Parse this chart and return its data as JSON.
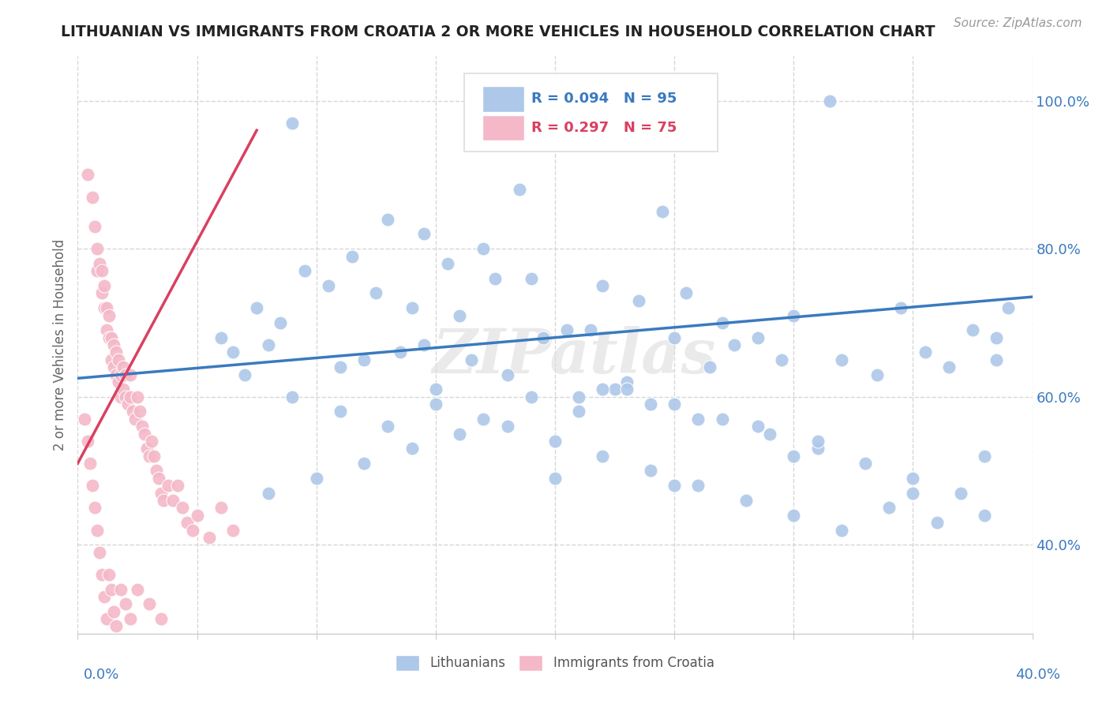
{
  "title": "LITHUANIAN VS IMMIGRANTS FROM CROATIA 2 OR MORE VEHICLES IN HOUSEHOLD CORRELATION CHART",
  "source_text": "Source: ZipAtlas.com",
  "ylabel": "2 or more Vehicles in Household",
  "xmin": 0.0,
  "xmax": 0.4,
  "ymin": 0.28,
  "ymax": 1.06,
  "blue_R": 0.094,
  "blue_N": 95,
  "pink_R": 0.297,
  "pink_N": 75,
  "blue_color": "#adc8e8",
  "pink_color": "#f4b8c8",
  "blue_line_color": "#3a7abf",
  "pink_line_color": "#d94060",
  "legend_blue_label": "R = 0.094   N = 95",
  "legend_pink_label": "R = 0.297   N = 75",
  "legend_text_color": "#3a7abf",
  "legend_pink_text_color": "#d94060",
  "watermark": "ZIPatlas",
  "yticks": [
    0.4,
    0.6,
    0.8,
    1.0
  ],
  "ytick_labels": [
    "40.0%",
    "60.0%",
    "80.0%",
    "100.0%"
  ],
  "blue_scatter_x": [
    0.315,
    0.09,
    0.185,
    0.245,
    0.145,
    0.17,
    0.13,
    0.155,
    0.175,
    0.115,
    0.095,
    0.125,
    0.14,
    0.16,
    0.215,
    0.235,
    0.195,
    0.105,
    0.085,
    0.075,
    0.08,
    0.135,
    0.19,
    0.22,
    0.205,
    0.255,
    0.27,
    0.285,
    0.3,
    0.165,
    0.345,
    0.375,
    0.11,
    0.12,
    0.25,
    0.32,
    0.335,
    0.355,
    0.365,
    0.385,
    0.295,
    0.275,
    0.265,
    0.23,
    0.225,
    0.21,
    0.18,
    0.15,
    0.145,
    0.385,
    0.06,
    0.065,
    0.07,
    0.09,
    0.11,
    0.13,
    0.15,
    0.17,
    0.19,
    0.21,
    0.23,
    0.25,
    0.27,
    0.29,
    0.31,
    0.33,
    0.35,
    0.37,
    0.39,
    0.18,
    0.2,
    0.22,
    0.24,
    0.26,
    0.28,
    0.3,
    0.32,
    0.34,
    0.36,
    0.38,
    0.16,
    0.14,
    0.12,
    0.1,
    0.08,
    0.2,
    0.25,
    0.3,
    0.35,
    0.38,
    0.285,
    0.31,
    0.26,
    0.24,
    0.22
  ],
  "blue_scatter_y": [
    1.0,
    0.97,
    0.88,
    0.85,
    0.82,
    0.8,
    0.84,
    0.78,
    0.76,
    0.79,
    0.77,
    0.74,
    0.72,
    0.71,
    0.69,
    0.73,
    0.68,
    0.75,
    0.7,
    0.72,
    0.67,
    0.66,
    0.76,
    0.75,
    0.69,
    0.74,
    0.7,
    0.68,
    0.71,
    0.65,
    0.72,
    0.69,
    0.64,
    0.65,
    0.68,
    0.65,
    0.63,
    0.66,
    0.64,
    0.68,
    0.65,
    0.67,
    0.64,
    0.62,
    0.61,
    0.6,
    0.63,
    0.61,
    0.67,
    0.65,
    0.68,
    0.66,
    0.63,
    0.6,
    0.58,
    0.56,
    0.59,
    0.57,
    0.6,
    0.58,
    0.61,
    0.59,
    0.57,
    0.55,
    0.53,
    0.51,
    0.49,
    0.47,
    0.72,
    0.56,
    0.54,
    0.52,
    0.5,
    0.48,
    0.46,
    0.44,
    0.42,
    0.45,
    0.43,
    0.52,
    0.55,
    0.53,
    0.51,
    0.49,
    0.47,
    0.49,
    0.48,
    0.52,
    0.47,
    0.44,
    0.56,
    0.54,
    0.57,
    0.59,
    0.61
  ],
  "pink_scatter_x": [
    0.004,
    0.006,
    0.007,
    0.008,
    0.008,
    0.009,
    0.01,
    0.01,
    0.011,
    0.011,
    0.012,
    0.012,
    0.013,
    0.013,
    0.014,
    0.014,
    0.015,
    0.015,
    0.016,
    0.016,
    0.017,
    0.017,
    0.018,
    0.018,
    0.019,
    0.019,
    0.02,
    0.02,
    0.021,
    0.022,
    0.022,
    0.023,
    0.024,
    0.025,
    0.026,
    0.027,
    0.028,
    0.029,
    0.03,
    0.031,
    0.032,
    0.033,
    0.034,
    0.035,
    0.036,
    0.038,
    0.04,
    0.042,
    0.044,
    0.046,
    0.048,
    0.05,
    0.055,
    0.06,
    0.065,
    0.003,
    0.004,
    0.005,
    0.006,
    0.007,
    0.008,
    0.009,
    0.01,
    0.011,
    0.012,
    0.013,
    0.014,
    0.015,
    0.016,
    0.018,
    0.02,
    0.022,
    0.025,
    0.03,
    0.035
  ],
  "pink_scatter_y": [
    0.9,
    0.87,
    0.83,
    0.8,
    0.77,
    0.78,
    0.74,
    0.77,
    0.72,
    0.75,
    0.69,
    0.72,
    0.68,
    0.71,
    0.65,
    0.68,
    0.64,
    0.67,
    0.63,
    0.66,
    0.62,
    0.65,
    0.6,
    0.63,
    0.61,
    0.64,
    0.6,
    0.63,
    0.59,
    0.6,
    0.63,
    0.58,
    0.57,
    0.6,
    0.58,
    0.56,
    0.55,
    0.53,
    0.52,
    0.54,
    0.52,
    0.5,
    0.49,
    0.47,
    0.46,
    0.48,
    0.46,
    0.48,
    0.45,
    0.43,
    0.42,
    0.44,
    0.41,
    0.45,
    0.42,
    0.57,
    0.54,
    0.51,
    0.48,
    0.45,
    0.42,
    0.39,
    0.36,
    0.33,
    0.3,
    0.36,
    0.34,
    0.31,
    0.29,
    0.34,
    0.32,
    0.3,
    0.34,
    0.32,
    0.3
  ],
  "blue_trend_x": [
    0.0,
    0.4
  ],
  "blue_trend_y": [
    0.625,
    0.735
  ],
  "pink_trend_x": [
    0.0,
    0.075
  ],
  "pink_trend_y": [
    0.51,
    0.96
  ]
}
